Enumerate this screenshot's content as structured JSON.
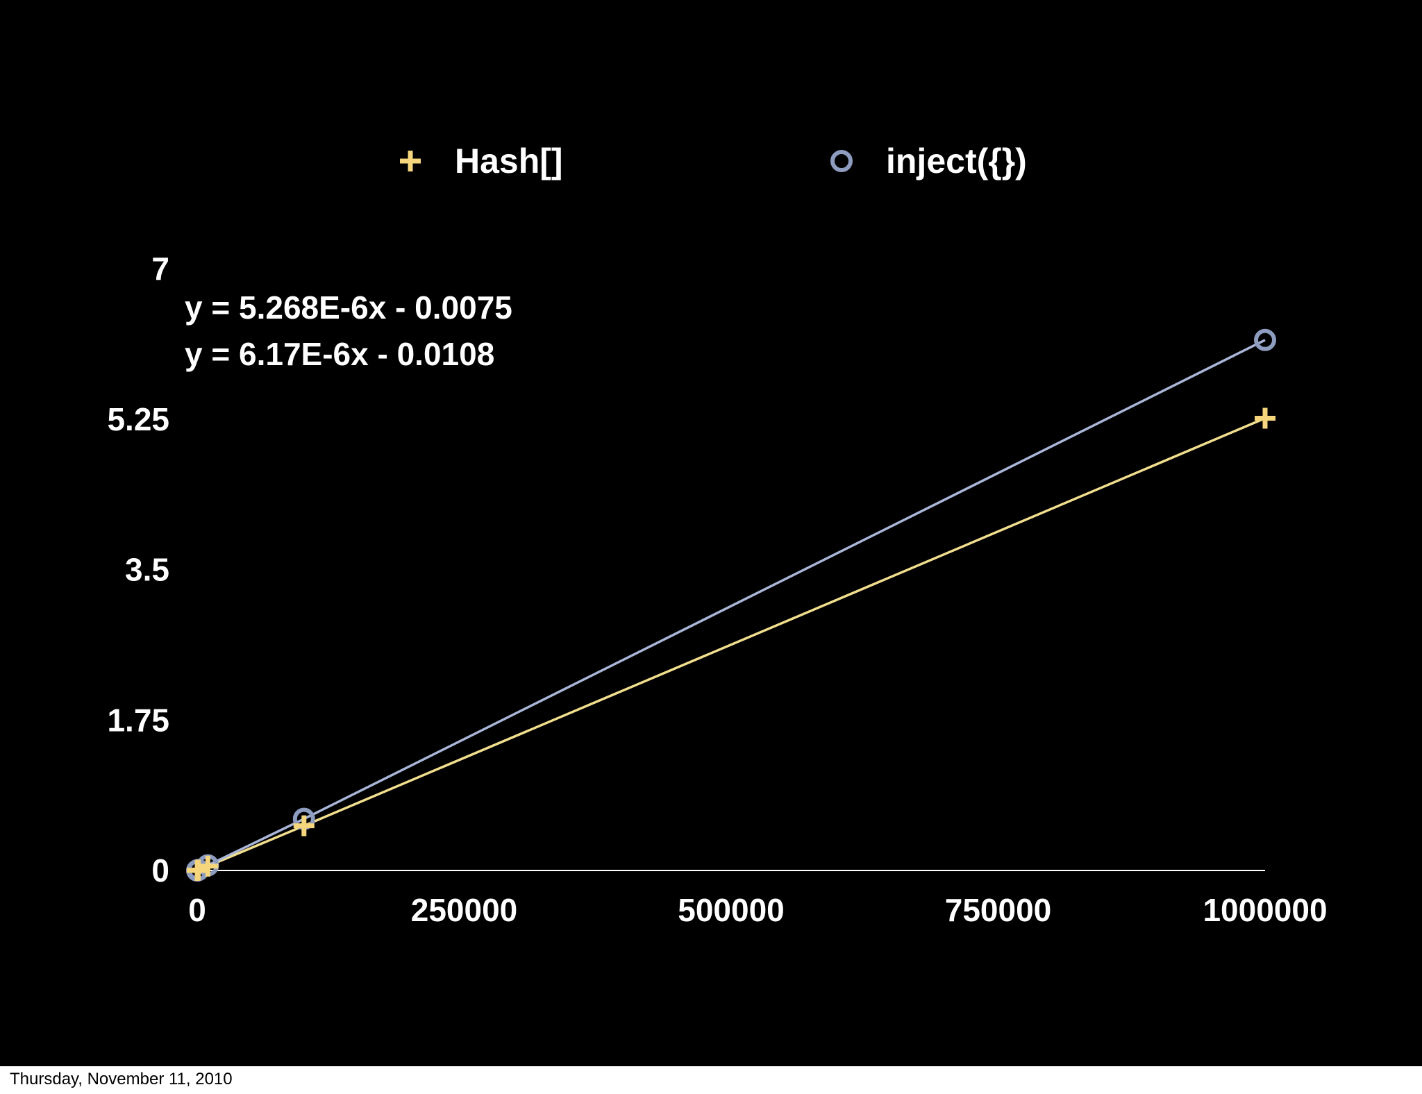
{
  "footer_date": "Thursday, November 11, 2010",
  "chart_data": {
    "type": "scatter",
    "title": "",
    "xlabel": "",
    "ylabel": "",
    "xlim": [
      0,
      1000000
    ],
    "ylim": [
      0,
      7
    ],
    "x_ticks": [
      "0",
      "250000",
      "500000",
      "750000",
      "1000000"
    ],
    "y_ticks": [
      "0",
      "1.75",
      "3.5",
      "5.25",
      "7"
    ],
    "grid": false,
    "legend_position": "top",
    "trendline_equations": [
      "y = 5.268E-6x - 0.0075",
      "y = 6.17E-6x - 0.0108"
    ],
    "series": [
      {
        "name": "Hash[]",
        "marker": "plus",
        "color": "#f5d67c",
        "line_color": "#f2df8e",
        "x": [
          0,
          1000,
          10000,
          100000,
          1000000
        ],
        "y": [
          0,
          0.005,
          0.05,
          0.52,
          5.26
        ]
      },
      {
        "name": "inject({})",
        "marker": "circle",
        "color": "#8e9cc0",
        "line_color": "#a9b6d8",
        "x": [
          0,
          1000,
          10000,
          100000,
          1000000
        ],
        "y": [
          0,
          0.006,
          0.06,
          0.6,
          6.17
        ]
      }
    ]
  }
}
